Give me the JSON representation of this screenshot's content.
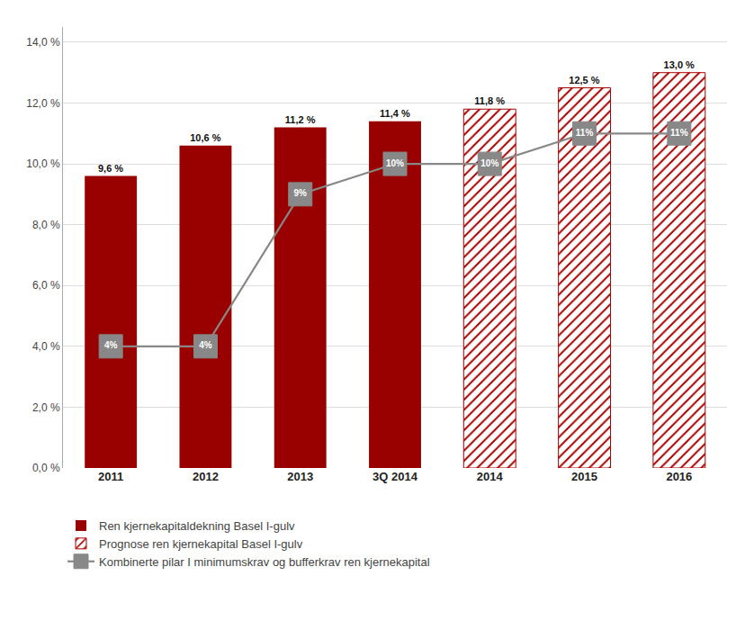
{
  "chart_data": {
    "type": "bar",
    "categories": [
      "2011",
      "2012",
      "2013",
      "3Q 2014",
      "2014",
      "2015",
      "2016"
    ],
    "series": [
      {
        "name": "Ren kjernekapitaldekning Basel I-gulv",
        "type": "bar",
        "color": "#990000",
        "values": [
          9.6,
          10.6,
          11.2,
          11.4,
          null,
          null,
          null
        ],
        "value_labels": [
          "9,6 %",
          "10,6 %",
          "11,2 %",
          "11,4 %",
          null,
          null,
          null
        ]
      },
      {
        "name": "Prognose ren kjernekapital Basel I-gulv",
        "type": "bar",
        "color": "#aa0000",
        "values": [
          null,
          null,
          null,
          null,
          11.8,
          12.5,
          13.0
        ],
        "value_labels": [
          null,
          null,
          null,
          null,
          "11,8 %",
          "12,5 %",
          "13,0 %"
        ]
      },
      {
        "name": "Kombinerte pilar I minimumskrav og bufferkrav ren kjernekapital",
        "type": "line",
        "color": "#888888",
        "marker": "square",
        "values": [
          4.0,
          4.0,
          9.0,
          10.0,
          10.0,
          11.0,
          11.0
        ],
        "value_labels": [
          "4%",
          "4%",
          "9%",
          "10%",
          "10%",
          "11%",
          "11%"
        ]
      }
    ],
    "ylim": [
      0,
      14.5
    ],
    "yticks": [
      {
        "value": 0.0,
        "label": "0,0 %"
      },
      {
        "value": 2.0,
        "label": "2,0 %"
      },
      {
        "value": 4.0,
        "label": "4,0 %"
      },
      {
        "value": 6.0,
        "label": "6,0 %"
      },
      {
        "value": 8.0,
        "label": "8,0 %"
      },
      {
        "value": 10.0,
        "label": "10,0 %"
      },
      {
        "value": 12.0,
        "label": "12,0 %"
      },
      {
        "value": 14.0,
        "label": "14,0 %"
      }
    ],
    "grid": true,
    "legend": "bottom",
    "data_labels": true
  }
}
